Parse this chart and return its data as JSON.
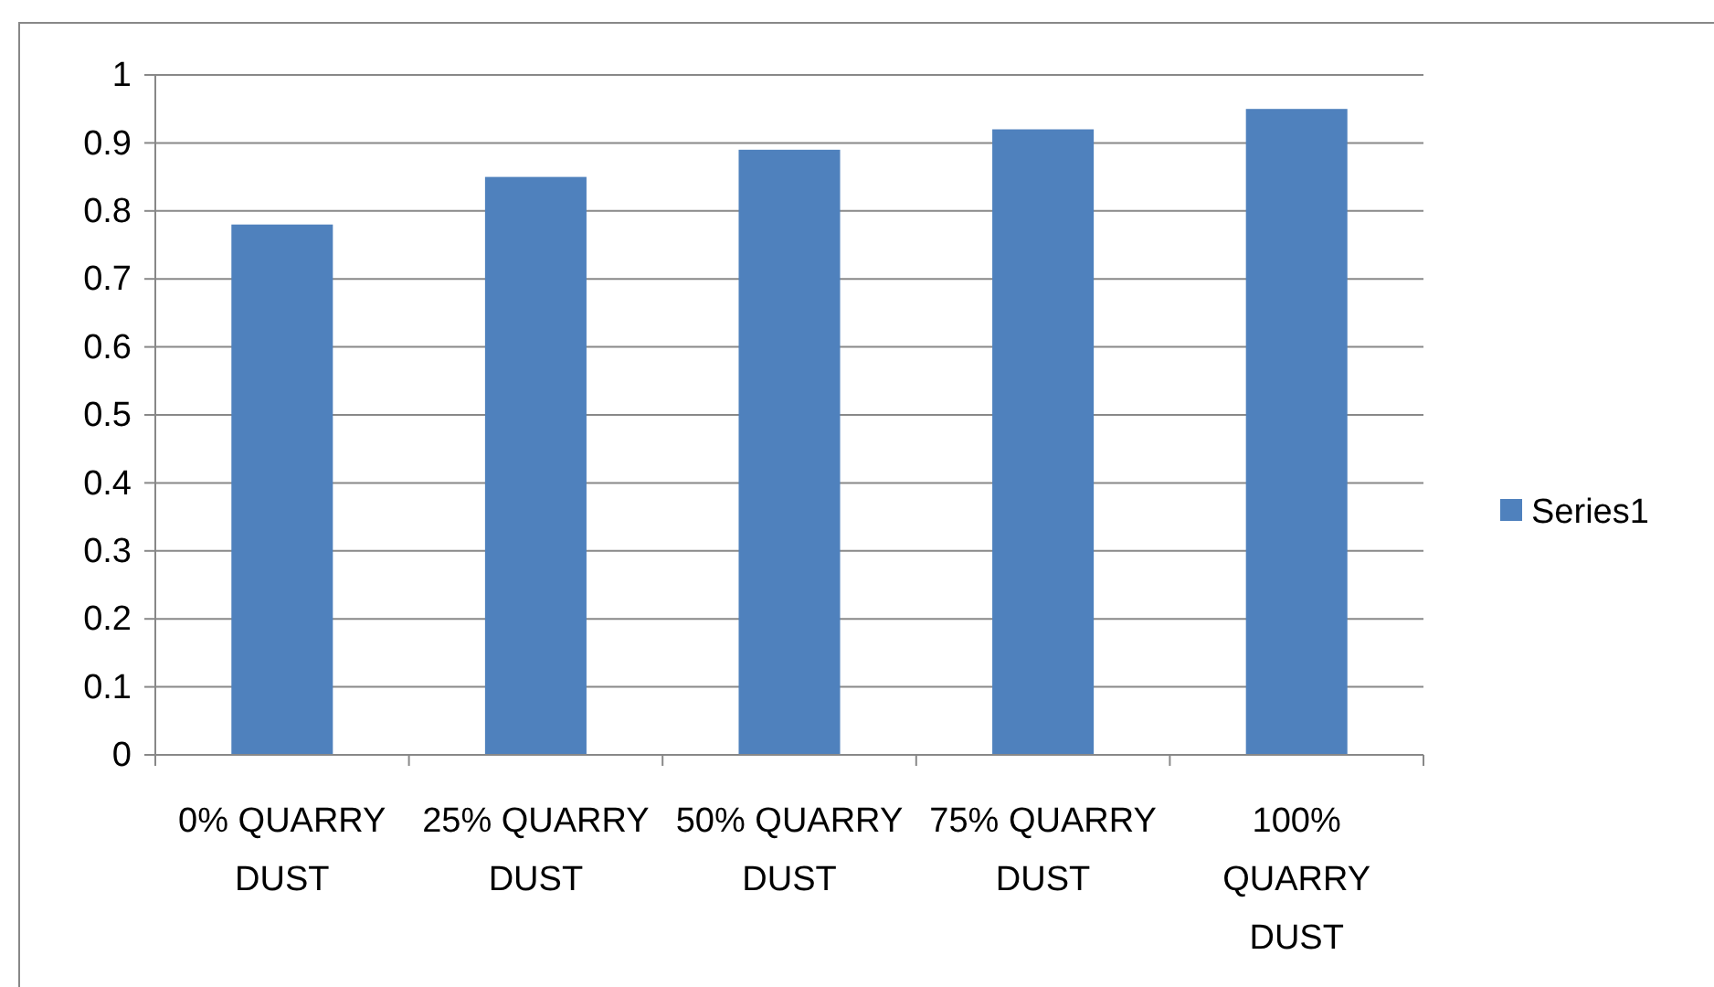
{
  "chart_data": {
    "type": "bar",
    "categories": [
      "0% QUARRY DUST",
      "25% QUARRY DUST",
      "50% QUARRY DUST",
      "75% QUARRY DUST",
      "100% QUARRY DUST"
    ],
    "series": [
      {
        "name": "Series1",
        "color": "#4f81bd",
        "values": [
          0.78,
          0.85,
          0.89,
          0.92,
          0.95
        ]
      }
    ],
    "ylim": [
      0,
      1
    ],
    "yticks": [
      0,
      0.1,
      0.2,
      0.3,
      0.4,
      0.5,
      0.6,
      0.7,
      0.8,
      0.9,
      1
    ],
    "grid": "y",
    "legend": "right"
  }
}
